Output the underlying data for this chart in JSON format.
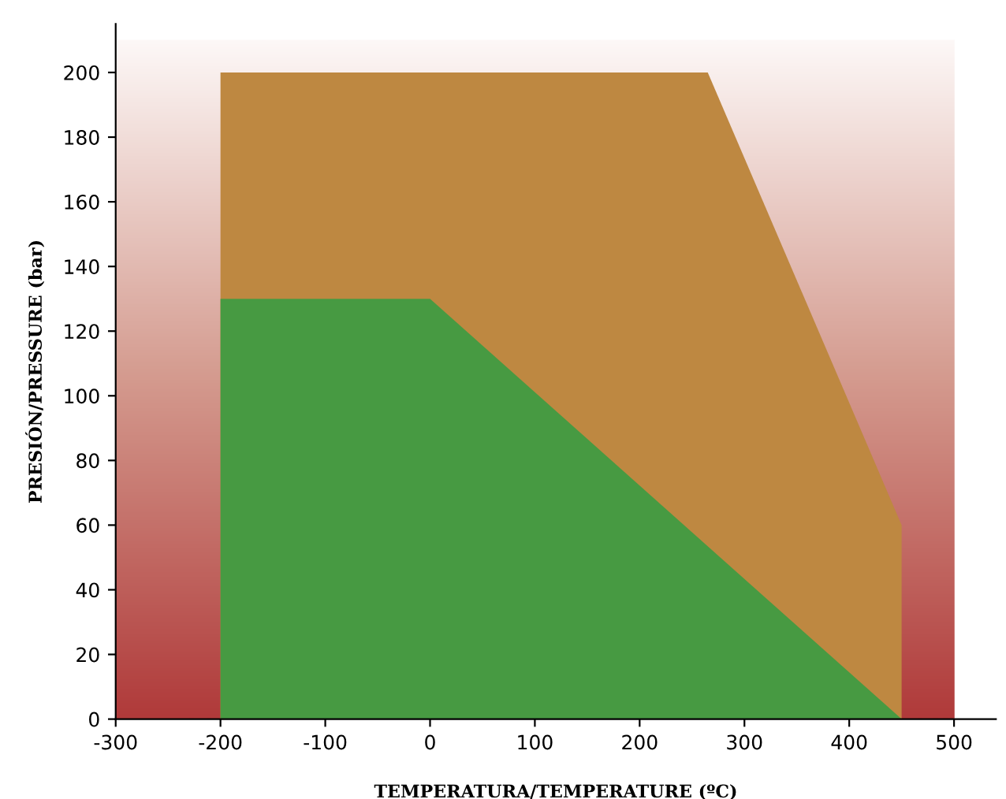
{
  "chart_data": {
    "type": "area",
    "xlabel": "TEMPERATURA/TEMPERATURE (ºC)",
    "ylabel": "PRESIÓN/PRESSURE (bar)",
    "series": [
      {
        "color": "#be8841",
        "x": [
          -200,
          265,
          450,
          450
        ],
        "values": [
          200,
          200,
          60,
          0
        ]
      },
      {
        "color": "#479a42",
        "x": [
          -200,
          0,
          450
        ],
        "values": [
          130,
          130,
          0
        ]
      }
    ],
    "xlim": [
      -300,
      540
    ],
    "ylim": [
      0,
      215
    ],
    "xticks": [
      -300,
      -200,
      -100,
      0,
      100,
      200,
      300,
      400,
      500
    ],
    "yticks": [
      0,
      20,
      40,
      60,
      80,
      100,
      120,
      140,
      160,
      180,
      200
    ],
    "grid": false,
    "legend": false
  }
}
